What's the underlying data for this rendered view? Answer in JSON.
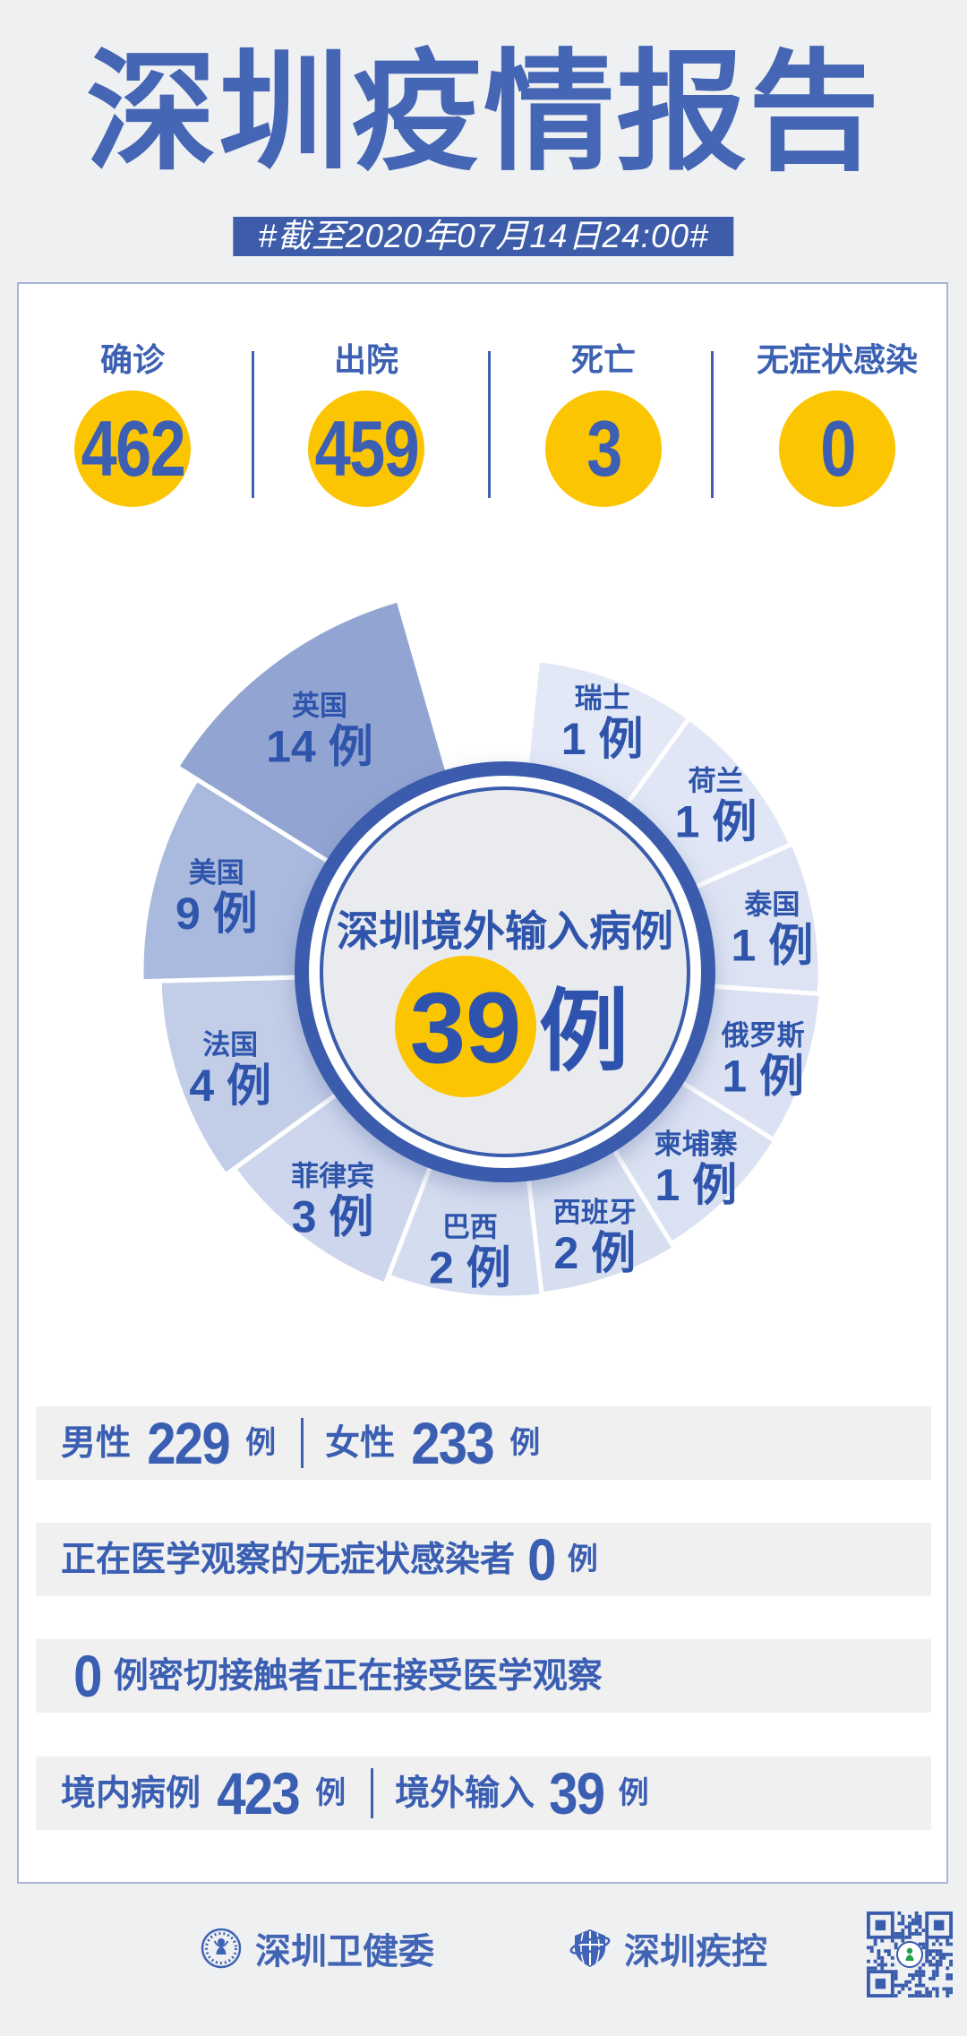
{
  "title": "深圳疫情报告",
  "banner": "#截至2020年07月14日24:00#",
  "colors": {
    "accent_blue": "#3c5fb3",
    "banner_blue": "#3d5caa",
    "ring_blue": "#3a5cad",
    "highlight_yellow": "#fcc502",
    "page_background": "#eff0f2",
    "row_background": "#f0f0f1",
    "card_border": "#a9b4d9"
  },
  "stats": [
    {
      "label": "确诊",
      "value": "462"
    },
    {
      "label": "出院",
      "value": "459"
    },
    {
      "label": "死亡",
      "value": "3"
    },
    {
      "label": "无症状感染",
      "value": "0"
    }
  ],
  "chart_data": {
    "type": "pie",
    "style": "rose-donut, decorative angles, radius grows with value, UK slice emphasized",
    "center_title": "深圳境外输入病例",
    "total": 39,
    "unit": "例",
    "legend_position": "labels-on-slices",
    "segments": [
      {
        "label": "瑞士",
        "value": 1,
        "start": 6,
        "end": 36,
        "radius": 350,
        "labelRadius": 303,
        "color": "#e3e8f6"
      },
      {
        "label": "荷兰",
        "value": 1,
        "start": 36,
        "end": 66,
        "radius": 350,
        "labelRadius": 303,
        "color": "#e0e6f5"
      },
      {
        "label": "泰国",
        "value": 1,
        "start": 66,
        "end": 94,
        "radius": 352,
        "labelRadius": 303,
        "color": "#dde3f3"
      },
      {
        "label": "俄罗斯",
        "value": 1,
        "start": 94,
        "end": 122,
        "radius": 354,
        "labelRadius": 303,
        "color": "#dce2f3"
      },
      {
        "label": "柬埔寨",
        "value": 1,
        "start": 122,
        "end": 148.5,
        "radius": 356,
        "labelRadius": 303,
        "color": "#dae1f2"
      },
      {
        "label": "西班牙",
        "value": 2,
        "start": 148.5,
        "end": 173.5,
        "radius": 362,
        "labelRadius": 308,
        "color": "#d7def0"
      },
      {
        "label": "巴西",
        "value": 2,
        "start": 173.5,
        "end": 201,
        "radius": 364,
        "labelRadius": 310,
        "color": "#d4dcef"
      },
      {
        "label": "菲律宾",
        "value": 3,
        "start": 201,
        "end": 234,
        "radius": 374,
        "labelRadius": 316,
        "color": "#cdd6ec"
      },
      {
        "label": "法国",
        "value": 4,
        "start": 234,
        "end": 268.5,
        "radius": 386,
        "labelRadius": 324,
        "color": "#c2cde8"
      },
      {
        "label": "美国",
        "value": 9,
        "start": 268.5,
        "end": 302,
        "radius": 406,
        "labelRadius": 334,
        "color": "#aab9de"
      },
      {
        "label": "英国",
        "value": 14,
        "start": 302,
        "end": 344,
        "radius": 432,
        "labelRadius": 344,
        "color": "#92a4d2"
      }
    ]
  },
  "rows": [
    {
      "parts": [
        {
          "type": "label",
          "text": "男性"
        },
        {
          "type": "num",
          "text": "229"
        },
        {
          "type": "unit",
          "text": "例"
        },
        {
          "type": "divider"
        },
        {
          "type": "label",
          "text": "女性"
        },
        {
          "type": "num",
          "text": "233"
        },
        {
          "type": "unit",
          "text": "例"
        }
      ]
    },
    {
      "parts": [
        {
          "type": "label",
          "text": "正在医学观察的无症状感染者"
        },
        {
          "type": "num",
          "text": "0"
        },
        {
          "type": "unit",
          "text": "例"
        }
      ]
    },
    {
      "parts": [
        {
          "type": "num",
          "text": "0"
        },
        {
          "type": "label",
          "text": "例密切接触者正在接受医学观察"
        }
      ]
    },
    {
      "parts": [
        {
          "type": "label",
          "text": "境内病例"
        },
        {
          "type": "num",
          "text": "423"
        },
        {
          "type": "unit",
          "text": "例"
        },
        {
          "type": "divider"
        },
        {
          "type": "label",
          "text": "境外输入"
        },
        {
          "type": "num",
          "text": "39"
        },
        {
          "type": "unit",
          "text": "例"
        }
      ]
    }
  ],
  "footer": {
    "org1": "深圳卫健委",
    "org2": "深圳疾控",
    "qr_label": "qr-code"
  }
}
